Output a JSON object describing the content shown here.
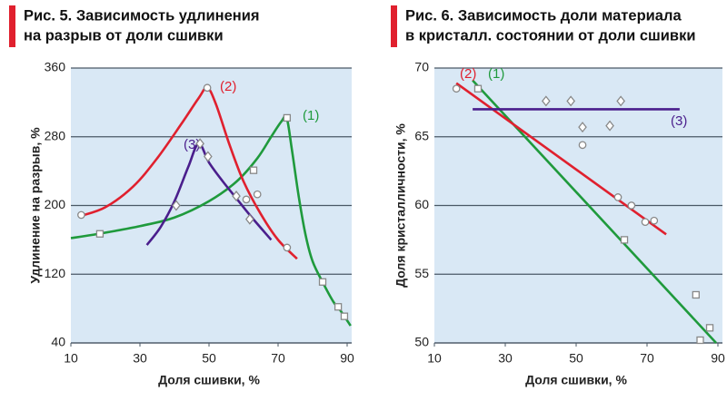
{
  "chart_data": [
    {
      "type": "line",
      "title": [
        "Рис. 5. Зависимость удлинения",
        "на разрыв от доли сшивки"
      ],
      "xlabel": "Доля сшивки, %",
      "ylabel": "Удлинение на разрыв, %",
      "xlim": [
        10,
        90
      ],
      "xticks": [
        10,
        30,
        50,
        70,
        90
      ],
      "ylim": [
        40,
        360
      ],
      "yticks": [
        40,
        120,
        200,
        280,
        360
      ],
      "grid": true,
      "series": [
        {
          "name": "(1)",
          "color": "#1f9a3c",
          "marker": "square",
          "x": [
            10,
            18,
            30,
            40,
            50,
            58,
            64,
            68,
            71,
            72.5,
            74,
            76,
            78,
            80,
            83,
            86,
            88,
            91
          ],
          "values": [
            162,
            167,
            176,
            186,
            205,
            228,
            255,
            280,
            298,
            302,
            265,
            210,
            165,
            135,
            110,
            88,
            78,
            60
          ],
          "marker_x": [
            18.4,
            62.9,
            72.6,
            82.9,
            87.4,
            89.2
          ],
          "marker_values": [
            167,
            241,
            302,
            111,
            82,
            71
          ]
        },
        {
          "name": "(2)",
          "color": "#e0202e",
          "marker": "circle",
          "x": [
            13,
            20,
            28,
            35,
            42,
            47,
            49.5,
            52,
            56,
            60,
            65,
            70,
            75.5
          ],
          "values": [
            188,
            198,
            222,
            255,
            295,
            325,
            337,
            318,
            270,
            228,
            190,
            160,
            138
          ],
          "marker_x": [
            13,
            49.5,
            60.8,
            64,
            72.6
          ],
          "marker_values": [
            189,
            337,
            207,
            213,
            151
          ]
        },
        {
          "name": "(3)",
          "color": "#4a1e8c",
          "marker": "diamond",
          "x": [
            32,
            36,
            40,
            44,
            47,
            50,
            54,
            58,
            62,
            68
          ],
          "values": [
            154,
            175,
            205,
            245,
            272,
            250,
            228,
            208,
            188,
            160
          ],
          "marker_x": [
            40.5,
            47.4,
            49.7,
            57.9,
            61.8
          ],
          "marker_values": [
            200,
            272,
            257,
            211,
            184
          ]
        }
      ]
    },
    {
      "type": "line",
      "title": [
        "Рис. 6. Зависимость доли материала",
        "в кристалл. состоянии от доли сшивки"
      ],
      "xlabel": "Доля сшивки, %",
      "ylabel": "Доля кристалличности, %",
      "xlim": [
        10,
        90
      ],
      "xticks": [
        10,
        30,
        50,
        70,
        90
      ],
      "ylim": [
        50,
        70
      ],
      "yticks": [
        50,
        55,
        60,
        65,
        70
      ],
      "grid": true,
      "series": [
        {
          "name": "(1)",
          "color": "#1f9a3c",
          "marker": "square",
          "x": [
            20.8,
            89.5
          ],
          "values": [
            69.1,
            50
          ],
          "marker_x": [
            22.3,
            63.6,
            83.8,
            85,
            87.7
          ],
          "marker_values": [
            68.5,
            57.5,
            53.5,
            50.2,
            51.1
          ]
        },
        {
          "name": "(2)",
          "color": "#e0202e",
          "marker": "circle",
          "x": [
            16.2,
            75.4
          ],
          "values": [
            68.9,
            57.9
          ],
          "marker_x": [
            16.2,
            51.8,
            61.8,
            65.6,
            69.5,
            72
          ],
          "marker_values": [
            68.5,
            64.4,
            60.6,
            60.0,
            58.8,
            58.9
          ]
        },
        {
          "name": "(3)",
          "color": "#4a1e8c",
          "marker": "diamond",
          "x": [
            20.8,
            79.2
          ],
          "values": [
            67,
            67
          ],
          "marker_x": [
            41.5,
            48.5,
            51.8,
            59.5,
            62.6
          ],
          "marker_values": [
            67.6,
            67.6,
            65.7,
            65.8,
            67.6
          ]
        }
      ]
    }
  ]
}
